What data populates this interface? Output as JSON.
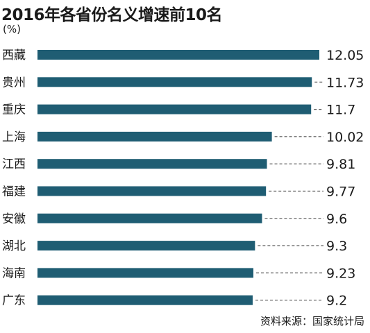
{
  "chart_data": {
    "type": "bar",
    "orientation": "horizontal",
    "title": "2016年各省份名义增速前10名",
    "unit": "(%)",
    "categories": [
      "西藏",
      "贵州",
      "重庆",
      "上海",
      "江西",
      "福建",
      "安徽",
      "湖北",
      "海南",
      "广东"
    ],
    "values": [
      12.05,
      11.73,
      11.7,
      10.02,
      9.81,
      9.77,
      9.6,
      9.3,
      9.23,
      9.2
    ],
    "value_labels": [
      "12.05",
      "11.73",
      "11.7",
      "10.02",
      "9.81",
      "9.77",
      "9.6",
      "9.3",
      "9.23",
      "9.2"
    ],
    "xlim": [
      0,
      12.05
    ],
    "grid": false,
    "legend": "none",
    "bar_color": "#1f5d73",
    "leader_line_color": "#555555"
  },
  "footer": {
    "source": "资料来源：国家统计局"
  }
}
